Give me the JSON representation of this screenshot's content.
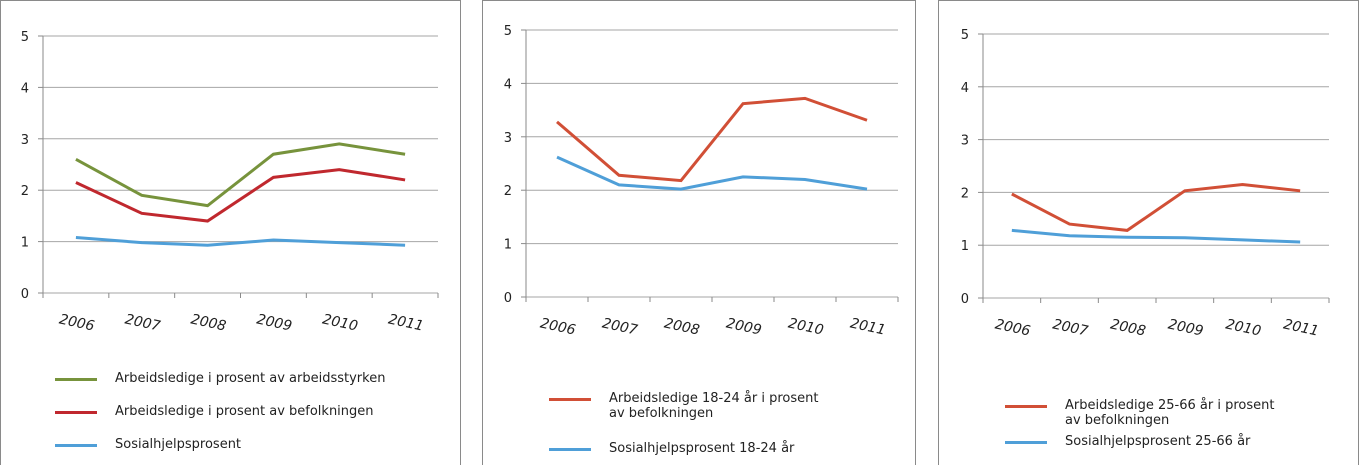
{
  "chart_data": [
    {
      "type": "line",
      "categories": [
        "2006",
        "2007",
        "2008",
        "2009",
        "2010",
        "2011"
      ],
      "ylim": [
        0,
        5
      ],
      "yticks": [
        0,
        1,
        2,
        3,
        4,
        5
      ],
      "grid": true,
      "series": [
        {
          "name": "Arbeidsledige i prosent av arbeidsstyrken",
          "color": "#77933c",
          "values": [
            2.6,
            1.9,
            1.7,
            2.7,
            2.9,
            2.7
          ]
        },
        {
          "name": "Arbeidsledige i prosent av befolkningen",
          "color": "#c0282e",
          "values": [
            2.15,
            1.55,
            1.4,
            2.25,
            2.4,
            2.2
          ]
        },
        {
          "name": "Sosialhjelpsprosent",
          "color": "#4f9fd8",
          "values": [
            1.08,
            0.98,
            0.93,
            1.03,
            0.98,
            0.93
          ]
        }
      ]
    },
    {
      "type": "line",
      "categories": [
        "2006",
        "2007",
        "2008",
        "2009",
        "2010",
        "2011"
      ],
      "ylim": [
        0,
        5
      ],
      "yticks": [
        0,
        1,
        2,
        3,
        4,
        5
      ],
      "grid": true,
      "series": [
        {
          "name": "Arbeidsledige 18-24 år i prosent av befolkningen",
          "color": "#d14f36",
          "values": [
            3.28,
            2.28,
            2.18,
            3.62,
            3.72,
            3.31
          ]
        },
        {
          "name": "Sosialhjelpsprosent 18-24 år",
          "color": "#4f9fd8",
          "values": [
            2.62,
            2.1,
            2.02,
            2.25,
            2.2,
            2.02
          ]
        }
      ]
    },
    {
      "type": "line",
      "categories": [
        "2006",
        "2007",
        "2008",
        "2009",
        "2010",
        "2011"
      ],
      "ylim": [
        0,
        5
      ],
      "yticks": [
        0,
        1,
        2,
        3,
        4,
        5
      ],
      "grid": true,
      "series": [
        {
          "name": "Arbeidsledige 25-66 år i prosent av befolkningen",
          "color": "#d14f36",
          "values": [
            1.97,
            1.4,
            1.28,
            2.03,
            2.15,
            2.03
          ]
        },
        {
          "name": "Sosialhjelpsprosent 25-66 år",
          "color": "#4f9fd8",
          "values": [
            1.28,
            1.18,
            1.15,
            1.14,
            1.1,
            1.06
          ]
        }
      ]
    }
  ]
}
